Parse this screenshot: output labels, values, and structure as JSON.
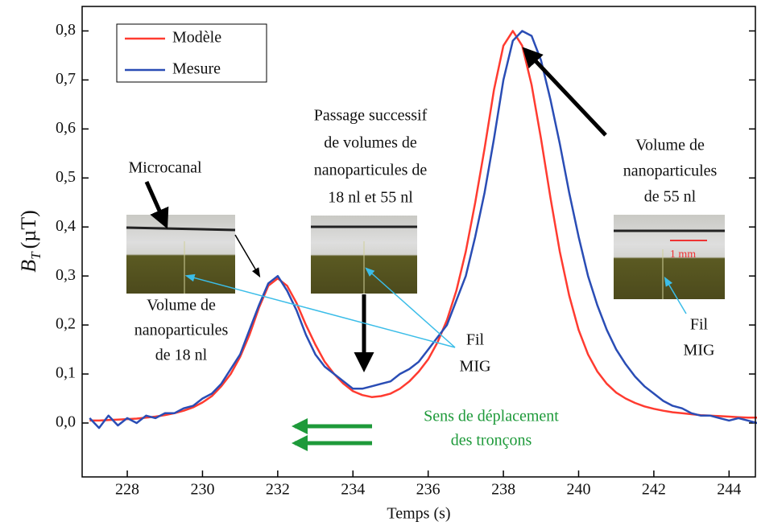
{
  "chart_data": {
    "type": "line",
    "x_label": "Temps (s)",
    "y_label": {
      "symbol": "B",
      "subscript": "T",
      "unit": "(µT)"
    },
    "xlim": [
      226.8,
      244.7
    ],
    "ylim": [
      -0.11,
      0.85
    ],
    "xticks": [
      228,
      230,
      232,
      234,
      236,
      238,
      240,
      242,
      244
    ],
    "yticks": [
      {
        "value": 0,
        "label": "0,0"
      },
      {
        "value": 0.1,
        "label": "0,1"
      },
      {
        "value": 0.2,
        "label": "0,2"
      },
      {
        "value": 0.3,
        "label": "0,3"
      },
      {
        "value": 0.4,
        "label": "0,4"
      },
      {
        "value": 0.5,
        "label": "0,5"
      },
      {
        "value": 0.6,
        "label": "0,6"
      },
      {
        "value": 0.7,
        "label": "0,7"
      },
      {
        "value": 0.8,
        "label": "0,8"
      }
    ],
    "legend": "upper left",
    "x": [
      227,
      227.25,
      227.5,
      227.75,
      228,
      228.25,
      228.5,
      228.75,
      229,
      229.25,
      229.5,
      229.75,
      230,
      230.25,
      230.5,
      230.75,
      231,
      231.25,
      231.5,
      231.75,
      232,
      232.25,
      232.5,
      232.75,
      233,
      233.25,
      233.5,
      233.75,
      234,
      234.25,
      234.5,
      234.75,
      235,
      235.25,
      235.5,
      235.75,
      236,
      236.25,
      236.5,
      236.75,
      237,
      237.25,
      237.5,
      237.75,
      238,
      238.25,
      238.5,
      238.75,
      239,
      239.25,
      239.5,
      239.75,
      240,
      240.25,
      240.5,
      240.75,
      241,
      241.25,
      241.5,
      241.75,
      242,
      242.25,
      242.5,
      242.75,
      243,
      243.25,
      243.5,
      243.75,
      244,
      244.25,
      244.5,
      244.75
    ],
    "series": [
      {
        "name": "Modèle",
        "color": "#ff3b30",
        "values": [
          0.005,
          0.005,
          0.006,
          0.007,
          0.008,
          0.009,
          0.011,
          0.013,
          0.016,
          0.02,
          0.025,
          0.032,
          0.042,
          0.055,
          0.075,
          0.1,
          0.135,
          0.18,
          0.235,
          0.28,
          0.295,
          0.28,
          0.245,
          0.2,
          0.16,
          0.125,
          0.1,
          0.08,
          0.065,
          0.057,
          0.053,
          0.055,
          0.06,
          0.07,
          0.085,
          0.105,
          0.13,
          0.165,
          0.21,
          0.27,
          0.35,
          0.45,
          0.56,
          0.68,
          0.77,
          0.8,
          0.77,
          0.69,
          0.58,
          0.46,
          0.35,
          0.26,
          0.19,
          0.14,
          0.105,
          0.08,
          0.062,
          0.05,
          0.041,
          0.034,
          0.029,
          0.025,
          0.022,
          0.02,
          0.018,
          0.016,
          0.015,
          0.014,
          0.013,
          0.012,
          0.011,
          0.011
        ]
      },
      {
        "name": "Mesure",
        "color": "#2a4db5",
        "values": [
          0.01,
          -0.01,
          0.015,
          -0.005,
          0.01,
          0.0,
          0.015,
          0.01,
          0.02,
          0.02,
          0.03,
          0.035,
          0.05,
          0.06,
          0.08,
          0.11,
          0.14,
          0.19,
          0.24,
          0.285,
          0.3,
          0.27,
          0.23,
          0.18,
          0.14,
          0.115,
          0.1,
          0.085,
          0.07,
          0.07,
          0.075,
          0.08,
          0.085,
          0.1,
          0.11,
          0.125,
          0.15,
          0.175,
          0.2,
          0.25,
          0.3,
          0.38,
          0.47,
          0.58,
          0.7,
          0.78,
          0.8,
          0.79,
          0.74,
          0.66,
          0.57,
          0.47,
          0.38,
          0.3,
          0.24,
          0.19,
          0.15,
          0.12,
          0.095,
          0.075,
          0.06,
          0.045,
          0.035,
          0.03,
          0.02,
          0.015,
          0.015,
          0.01,
          0.005,
          0.01,
          0.005,
          0.0
        ]
      }
    ],
    "annotations": [
      {
        "lines": [
          "Microcanal"
        ]
      },
      {
        "lines": [
          "Volume de",
          "nanoparticules",
          "de 18 nl"
        ]
      },
      {
        "lines": [
          "Passage successif",
          "de volumes de",
          "nanoparticules de",
          "18 nl et 55 nl"
        ]
      },
      {
        "lines": [
          "Volume de",
          "nanoparticules",
          "de 55 nl"
        ]
      },
      {
        "lines": [
          "Fil",
          "MIG"
        ]
      },
      {
        "lines": [
          "Fil",
          "MIG"
        ]
      },
      {
        "lines": [
          "Sens de déplacement",
          "des tronçons"
        ]
      },
      {
        "lines": [
          "1 mm"
        ]
      }
    ]
  }
}
